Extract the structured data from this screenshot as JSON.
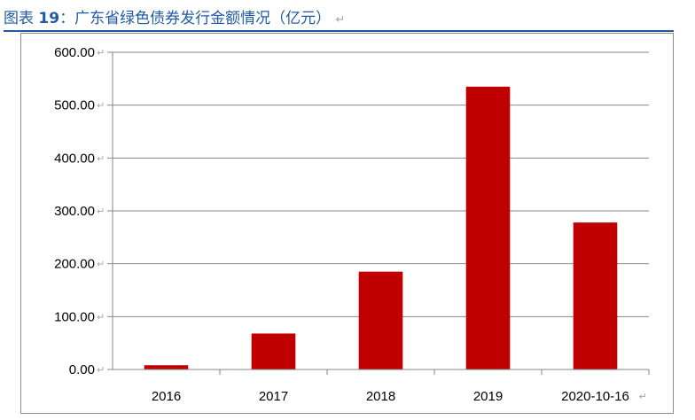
{
  "title": {
    "prefix": "图表",
    "number": "19",
    "rest": "：广东省绿色债券发行金额情况（亿元）"
  },
  "colors": {
    "bar": "#c00000",
    "title": "#1f5aa6",
    "grid": "#868686"
  },
  "chart_data": {
    "type": "bar",
    "categories": [
      "2016",
      "2017",
      "2018",
      "2019",
      "2020-10-16"
    ],
    "values": [
      8,
      68,
      185,
      535,
      278
    ],
    "ylim": [
      0,
      600
    ],
    "yticks": [
      "0.00",
      "100.00",
      "200.00",
      "300.00",
      "400.00",
      "500.00",
      "600.00"
    ],
    "grid": true,
    "legend": "none",
    "title": "",
    "xlabel": "",
    "ylabel": ""
  }
}
